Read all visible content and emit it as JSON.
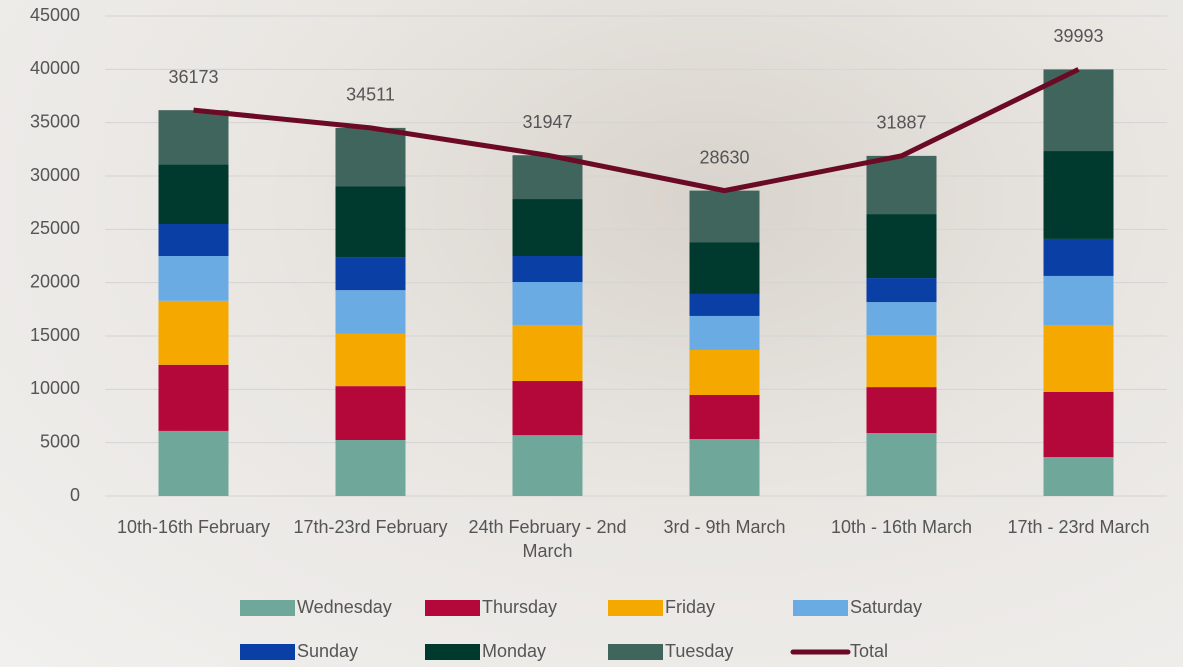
{
  "chart_data": {
    "type": "bar",
    "stacked": true,
    "categories": [
      "10th-16th February",
      "17th-23rd February",
      "24th February - 2nd March",
      "3rd - 9th March",
      "10th - 16th March",
      "17th - 23rd March"
    ],
    "series": [
      {
        "name": "Wednesday",
        "color": "#6fa89a",
        "values": [
          6100,
          5250,
          5700,
          5340,
          5900,
          3650
        ]
      },
      {
        "name": "Thursday",
        "color": "#b5083a",
        "values": [
          6200,
          5050,
          5080,
          4130,
          4310,
          6100
        ]
      },
      {
        "name": "Friday",
        "color": "#f5a800",
        "values": [
          6000,
          4900,
          5250,
          4220,
          4880,
          6280
        ]
      },
      {
        "name": "Saturday",
        "color": "#6aabe4",
        "values": [
          4200,
          4100,
          4030,
          3190,
          3090,
          4600
        ]
      },
      {
        "name": "Sunday",
        "color": "#0a3fa6",
        "values": [
          3000,
          3100,
          2440,
          2060,
          2250,
          3470
        ]
      },
      {
        "name": "Monday",
        "color": "#003a2f",
        "values": [
          5600,
          6650,
          5340,
          4860,
          6000,
          8240
        ]
      },
      {
        "name": "Tuesday",
        "color": "#40655c",
        "values": [
          5073,
          5461,
          4107,
          4830,
          5457,
          7653
        ]
      },
      {
        "name": "Total",
        "type": "line",
        "color": "#6b0a25",
        "values": [
          36173,
          34511,
          31947,
          28630,
          31887,
          39993
        ]
      }
    ],
    "ylim": [
      0,
      45000
    ],
    "yticks": [
      0,
      5000,
      10000,
      15000,
      20000,
      25000,
      30000,
      35000,
      40000,
      45000
    ],
    "grid": true
  }
}
